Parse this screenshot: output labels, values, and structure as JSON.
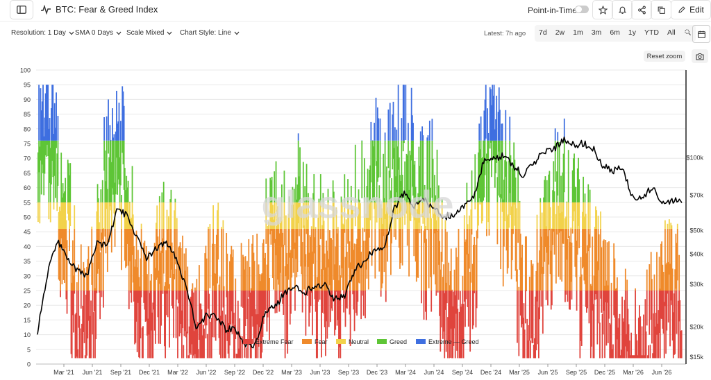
{
  "header": {
    "title": "BTC: Fear & Greed Index",
    "point_in_time_label": "Point-in-Time",
    "edit_label": "Edit"
  },
  "controls": {
    "resolution": "Resolution: 1 Day",
    "sma": "SMA 0 Days",
    "scale": "Scale Mixed",
    "chart_style": "Chart Style: Line",
    "latest": "Latest: 7h ago",
    "ranges": [
      "7d",
      "2w",
      "1m",
      "3m",
      "6m",
      "1y",
      "YTD",
      "All"
    ],
    "reset_zoom": "Reset zoom"
  },
  "watermark": "glassnode",
  "colors": {
    "extreme_fear": "#e0443d",
    "fear": "#ef8a2b",
    "neutral": "#f2d24b",
    "greed": "#5ec536",
    "extreme_greed": "#3f6fe0",
    "price": "#000000",
    "grid": "#e8e8e8"
  },
  "chart_data": {
    "type": "line",
    "x_tick_labels": [
      "Mar '21",
      "Jun '21",
      "Sep '21",
      "Dec '21",
      "Mar '22",
      "Jun '22",
      "Sep '22",
      "Dec '22",
      "Mar '23",
      "Jun '23",
      "Sep '23",
      "Dec '23",
      "Mar '24",
      "Jun '24",
      "Sep '24",
      "Dec '24",
      "Mar '25",
      "Jun '25",
      "Sep '25",
      "Dec '25",
      "Mar '26",
      "Jun '26"
    ],
    "y_left": {
      "min": 0,
      "max": 100,
      "ticks": [
        0,
        5,
        10,
        15,
        20,
        25,
        30,
        35,
        40,
        45,
        50,
        55,
        60,
        65,
        70,
        75,
        80,
        85,
        90,
        95,
        100
      ]
    },
    "y_right": {
      "scale": "log",
      "min": 14000,
      "max": 230000,
      "ticks": [
        15000,
        20000,
        30000,
        40000,
        50000,
        70000,
        100000
      ],
      "tick_labels": [
        "$15k",
        "$20k",
        "$30k",
        "$40k",
        "$50k",
        "$70k",
        "$100k"
      ]
    },
    "zones": [
      {
        "name": "Extreme Fear",
        "min": 0,
        "max": 25,
        "color": "#e0443d"
      },
      {
        "name": "Fear",
        "min": 25,
        "max": 46,
        "color": "#ef8a2b"
      },
      {
        "name": "Neutral",
        "min": 46,
        "max": 55,
        "color": "#f2d24b"
      },
      {
        "name": "Greed",
        "min": 55,
        "max": 76,
        "color": "#5ec536"
      },
      {
        "name": "Extreme Greed",
        "min": 76,
        "max": 100,
        "color": "#3f6fe0"
      }
    ],
    "legend": [
      "Extreme Fear",
      "Fear",
      "Neutral",
      "Greed",
      "Extreme — Greed"
    ],
    "legend_position": "bottom-center",
    "series": [
      {
        "name": "Fear & Greed Index",
        "x": [
          "Feb '21",
          "Mar '21",
          "Apr '21",
          "May '21",
          "Jun '21",
          "Jul '21",
          "Aug '21",
          "Sep '21",
          "Oct '21",
          "Nov '21",
          "Dec '21",
          "Jan '22",
          "Feb '22",
          "Mar '22",
          "Apr '22",
          "May '22",
          "Jun '22",
          "Jul '22",
          "Aug '22",
          "Sep '22",
          "Oct '22",
          "Nov '22",
          "Dec '22",
          "Jan '23",
          "Feb '23",
          "Mar '23",
          "Apr '23",
          "May '23",
          "Jun '23",
          "Jul '23",
          "Aug '23",
          "Sep '23",
          "Oct '23",
          "Nov '23",
          "Dec '23",
          "Jan '24",
          "Feb '24",
          "Mar '24",
          "Apr '24",
          "May '24",
          "Jun '24",
          "Jul '24",
          "Aug '24",
          "Sep '24",
          "Oct '24",
          "Nov '24",
          "Dec '24",
          "Jan '25",
          "Feb '25",
          "Mar '25",
          "Apr '25",
          "May '25",
          "Jun '25",
          "Jul '25",
          "Aug '25",
          "Sep '25",
          "Oct '25",
          "Nov '25",
          "Dec '25",
          "Jan '26",
          "Feb '26",
          "Mar '26",
          "Apr '26",
          "May '26",
          "Jun '26",
          "Jul '26"
        ],
        "values": [
          92,
          90,
          72,
          60,
          25,
          20,
          45,
          75,
          80,
          70,
          35,
          22,
          38,
          48,
          40,
          18,
          10,
          28,
          38,
          25,
          22,
          24,
          28,
          45,
          55,
          48,
          62,
          55,
          45,
          52,
          40,
          45,
          55,
          60,
          72,
          65,
          78,
          85,
          70,
          60,
          68,
          30,
          25,
          38,
          55,
          78,
          88,
          72,
          62,
          30,
          25,
          45,
          60,
          65,
          58,
          45,
          38,
          30,
          22,
          20,
          10,
          15,
          20,
          40,
          35,
          28
        ]
      },
      {
        "name": "BTC Price",
        "x": [
          "Feb '21",
          "Mar '21",
          "Apr '21",
          "May '21",
          "Jun '21",
          "Jul '21",
          "Aug '21",
          "Sep '21",
          "Oct '21",
          "Nov '21",
          "Dec '21",
          "Jan '22",
          "Feb '22",
          "Mar '22",
          "Apr '22",
          "May '22",
          "Jun '22",
          "Jul '22",
          "Aug '22",
          "Sep '22",
          "Oct '22",
          "Nov '22",
          "Dec '22",
          "Jan '23",
          "Feb '23",
          "Mar '23",
          "Apr '23",
          "May '23",
          "Jun '23",
          "Jul '23",
          "Aug '23",
          "Sep '23",
          "Oct '23",
          "Nov '23",
          "Dec '23",
          "Jan '24",
          "Feb '24",
          "Mar '24",
          "Apr '24",
          "May '24",
          "Jun '24",
          "Jul '24",
          "Aug '24",
          "Sep '24",
          "Oct '24",
          "Nov '24",
          "Dec '24",
          "Jan '25",
          "Feb '25",
          "Mar '25",
          "Apr '25",
          "May '25",
          "Jun '25",
          "Jul '25",
          "Aug '25",
          "Sep '25",
          "Oct '25",
          "Nov '25",
          "Dec '25",
          "Jan '26",
          "Feb '26",
          "Mar '26",
          "Apr '26",
          "May '26",
          "Jun '26",
          "Jul '26"
        ],
        "values": [
          19000,
          33000,
          45000,
          38000,
          34000,
          32000,
          45000,
          43000,
          61000,
          58000,
          47000,
          38000,
          42000,
          44000,
          39000,
          29000,
          19800,
          22000,
          22000,
          19500,
          19500,
          16500,
          16800,
          23000,
          24000,
          28000,
          29000,
          27500,
          30000,
          29500,
          26000,
          27000,
          34500,
          37000,
          42000,
          43000,
          62000,
          71000,
          63000,
          67000,
          61000,
          57000,
          58000,
          63000,
          68000,
          96000,
          98000,
          102000,
          92000,
          85000,
          95000,
          104000,
          107000,
          118000,
          113000,
          114000,
          110000,
          92000,
          88000,
          90000,
          69000,
          68000,
          76000,
          64000,
          67000,
          65000
        ]
      }
    ]
  }
}
